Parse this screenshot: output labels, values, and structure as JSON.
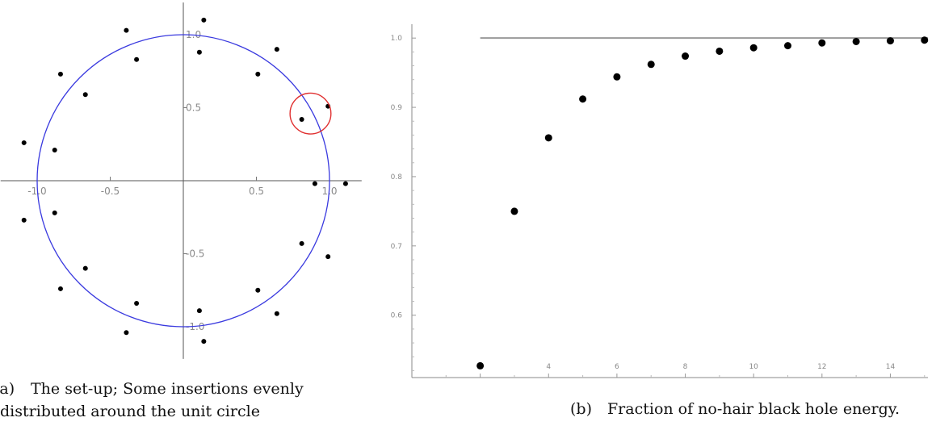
{
  "chart_data": [
    {
      "type": "scatter",
      "panel": "a",
      "title": "",
      "xlabel": "",
      "ylabel": "",
      "xlim": [
        -1.25,
        1.22
      ],
      "ylim": [
        -1.22,
        1.22
      ],
      "grid": false,
      "x_ticks": [
        -1.0,
        -0.5,
        0.5,
        1.0
      ],
      "x_tick_labels": [
        "-1.0",
        "-0.5",
        "0.5",
        "1.0"
      ],
      "y_ticks": [
        1.0,
        0.5,
        -0.5,
        -1.0
      ],
      "y_tick_labels": [
        "1.0",
        "0.5",
        "-0.5",
        "-1.0"
      ],
      "unit_circle": {
        "center": [
          0,
          0
        ],
        "radius": 1.0,
        "color": "#3a3adf"
      },
      "highlight_circle": {
        "center": [
          0.87,
          0.46
        ],
        "radius": 0.14,
        "color": "#e03030"
      },
      "points": [
        {
          "x": 0.14,
          "y": 1.1
        },
        {
          "x": 0.11,
          "y": 0.88
        },
        {
          "x": -0.39,
          "y": 1.03
        },
        {
          "x": -0.32,
          "y": 0.83
        },
        {
          "x": -0.84,
          "y": 0.73
        },
        {
          "x": -0.67,
          "y": 0.59
        },
        {
          "x": -1.09,
          "y": 0.26
        },
        {
          "x": -0.88,
          "y": 0.21
        },
        {
          "x": -1.09,
          "y": -0.27
        },
        {
          "x": -0.88,
          "y": -0.22
        },
        {
          "x": -0.84,
          "y": -0.74
        },
        {
          "x": -0.67,
          "y": -0.6
        },
        {
          "x": -0.39,
          "y": -1.04
        },
        {
          "x": -0.32,
          "y": -0.84
        },
        {
          "x": 0.11,
          "y": -0.89
        },
        {
          "x": 0.14,
          "y": -1.1
        },
        {
          "x": 0.51,
          "y": 0.73
        },
        {
          "x": 0.64,
          "y": 0.9
        },
        {
          "x": 0.81,
          "y": 0.42
        },
        {
          "x": 0.99,
          "y": 0.51
        },
        {
          "x": 0.9,
          "y": -0.02
        },
        {
          "x": 1.11,
          "y": -0.02
        },
        {
          "x": 0.81,
          "y": -0.43
        },
        {
          "x": 0.99,
          "y": -0.52
        },
        {
          "x": 0.51,
          "y": -0.75
        },
        {
          "x": 0.64,
          "y": -0.91
        }
      ],
      "caption_tag": "(a)",
      "caption_lines": [
        "The set-up; Some insertions evenly",
        "distributed around the unit circle"
      ]
    },
    {
      "type": "scatter",
      "panel": "b",
      "title": "",
      "xlabel": "",
      "ylabel": "",
      "xlim": [
        0,
        15.1
      ],
      "ylim": [
        0.51,
        1.02
      ],
      "grid": false,
      "x_ticks": [
        2,
        4,
        6,
        8,
        10,
        12,
        14
      ],
      "x_tick_labels": [
        "2",
        "4",
        "6",
        "8",
        "10",
        "12",
        "14"
      ],
      "y_ticks": [
        0.6,
        0.7,
        0.8,
        0.9,
        1.0
      ],
      "y_tick_labels": [
        "0.6",
        "0.7",
        "0.8",
        "0.9",
        "1.0"
      ],
      "reference_line": {
        "y": 1.0,
        "x_from": 2,
        "x_to": 15.1,
        "color": "#9a9a9a"
      },
      "x": [
        2,
        3,
        4,
        5,
        6,
        7,
        8,
        9,
        10,
        11,
        12,
        13,
        14,
        15
      ],
      "y": [
        0.527,
        0.75,
        0.856,
        0.912,
        0.944,
        0.962,
        0.974,
        0.981,
        0.986,
        0.989,
        0.993,
        0.995,
        0.996,
        0.997
      ],
      "caption_tag": "(b)",
      "caption_lines": [
        "Fraction of no-hair black hole energy."
      ]
    }
  ]
}
